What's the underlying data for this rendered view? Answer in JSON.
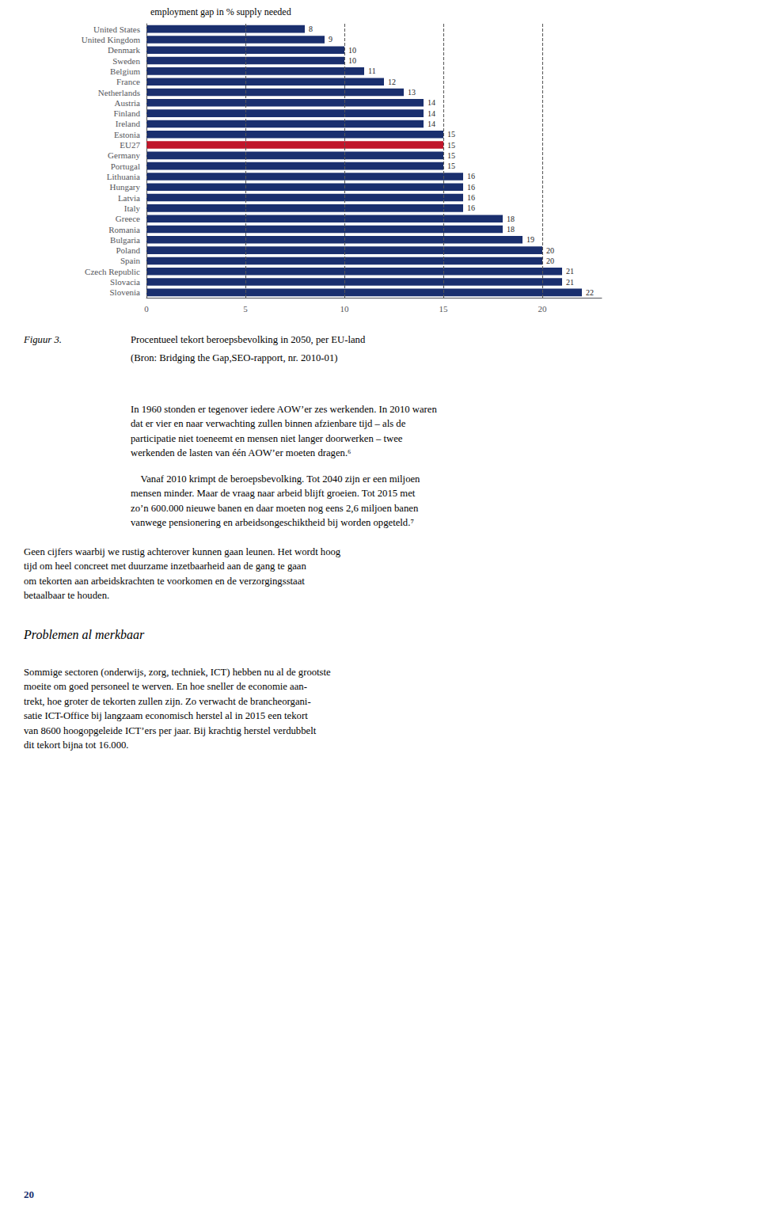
{
  "chart_data": {
    "type": "bar",
    "orientation": "horizontal",
    "xlabel": "employment gap in % supply needed",
    "categories": [
      "United States",
      "United Kingdom",
      "Denmark",
      "Sweden",
      "Belgium",
      "France",
      "Netherlands",
      "Austria",
      "Finland",
      "Ireland",
      "Estonia",
      "EU27",
      "Germany",
      "Portugal",
      "Lithuania",
      "Hungary",
      "Latvia",
      "Italy",
      "Greece",
      "Romania",
      "Bulgaria",
      "Poland",
      "Spain",
      "Czech Republic",
      "Slovacia",
      "Slovenia"
    ],
    "values": [
      8,
      9,
      10,
      10,
      11,
      12,
      13,
      14,
      14,
      14,
      15,
      15,
      15,
      15,
      16,
      16,
      16,
      16,
      18,
      18,
      19,
      20,
      20,
      21,
      21,
      22
    ],
    "colors": [
      "#1a2f6e",
      "#1a2f6e",
      "#1a2f6e",
      "#1a2f6e",
      "#1a2f6e",
      "#1a2f6e",
      "#1a2f6e",
      "#1a2f6e",
      "#1a2f6e",
      "#1a2f6e",
      "#1a2f6e",
      "#c0152a",
      "#1a2f6e",
      "#1a2f6e",
      "#1a2f6e",
      "#1a2f6e",
      "#1a2f6e",
      "#1a2f6e",
      "#1a2f6e",
      "#1a2f6e",
      "#1a2f6e",
      "#1a2f6e",
      "#1a2f6e",
      "#1a2f6e",
      "#1a2f6e",
      "#1a2f6e"
    ],
    "xlim": [
      0,
      23
    ],
    "xticks": [
      0,
      5,
      10,
      15,
      20
    ],
    "grid": true,
    "data_labels": true,
    "annotations": [
      "Figuur 3.",
      "Procentueel tekort beroepsbevolking in 2050, per EU-land",
      "(Bron: Bridging the Gap,SEO-rapport, nr. 2010-01)",
      "In 1960 stonden er tegenover iedere AOW’er zes werkenden. In 2010 waren\ndat er vier en naar verwachting zullen binnen afzienbare tijd – als de\nparticipatie niet toeneemt en mensen niet langer doorwerken – twee\nwerkenden de lasten van één AOW’er moeten dragen.⁶",
      "    Vanaf 2010 krimpt de beroepsbevolking. Tot 2040 zijn er een miljoen\nmensen minder. Maar de vraag naar arbeid blijft groeien. Tot 2015 met\nzo’n 600.000 nieuwe banen en daar moeten nog eens 2,6 miljoen banen\nvanwege pensionering en arbeidsongeschiktheid bij worden opgeteld.⁷",
      "Geen cijfers waarbij we rustig achterover kunnen gaan leunen. Het wordt hoog\ntijd om heel concreet met duurzame inzetbaarheid aan de gang te gaan\nom tekorten aan arbeidskrachten te voorkomen en de verzorgingsstaat\nbetaalbaar te houden.",
      "Problemen al merkbaar",
      "Sommige sectoren (onderwijs, zorg, techniek, ICT) hebben nu al de grootste\nmoeite om goed personeel te werven. En hoe sneller de economie aan-\ntrekt, hoe groter de tekorten zullen zijn. Zo verwacht de brancheorgani-\nsatie ICT-Office bij langzaam economisch herstel al in 2015 een tekort\nvan 8600 hoogopgeleide ICT’ers per jaar. Bij krachtig herstel verdubbelt\ndit tekort bijna tot 16.000.",
      "20"
    ]
  }
}
